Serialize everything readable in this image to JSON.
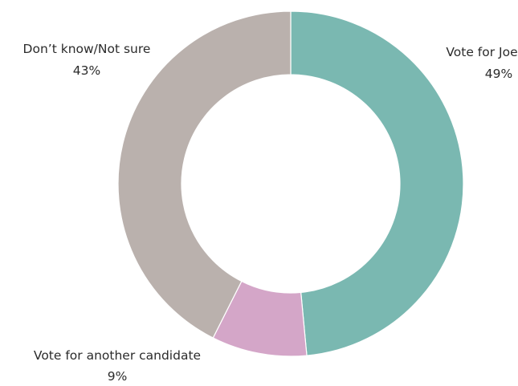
{
  "chart_data": {
    "type": "pie",
    "donut": true,
    "title": "",
    "categories": [
      "Vote for Joe",
      "Vote for another candidate",
      "Don’t know/Not sure"
    ],
    "values": [
      49,
      9,
      43
    ],
    "value_labels": [
      "49%",
      "9%",
      "43%"
    ],
    "colors": [
      "#7ab8b1",
      "#d4a6c8",
      "#bab1ad"
    ],
    "legend": "none",
    "grid": false
  }
}
